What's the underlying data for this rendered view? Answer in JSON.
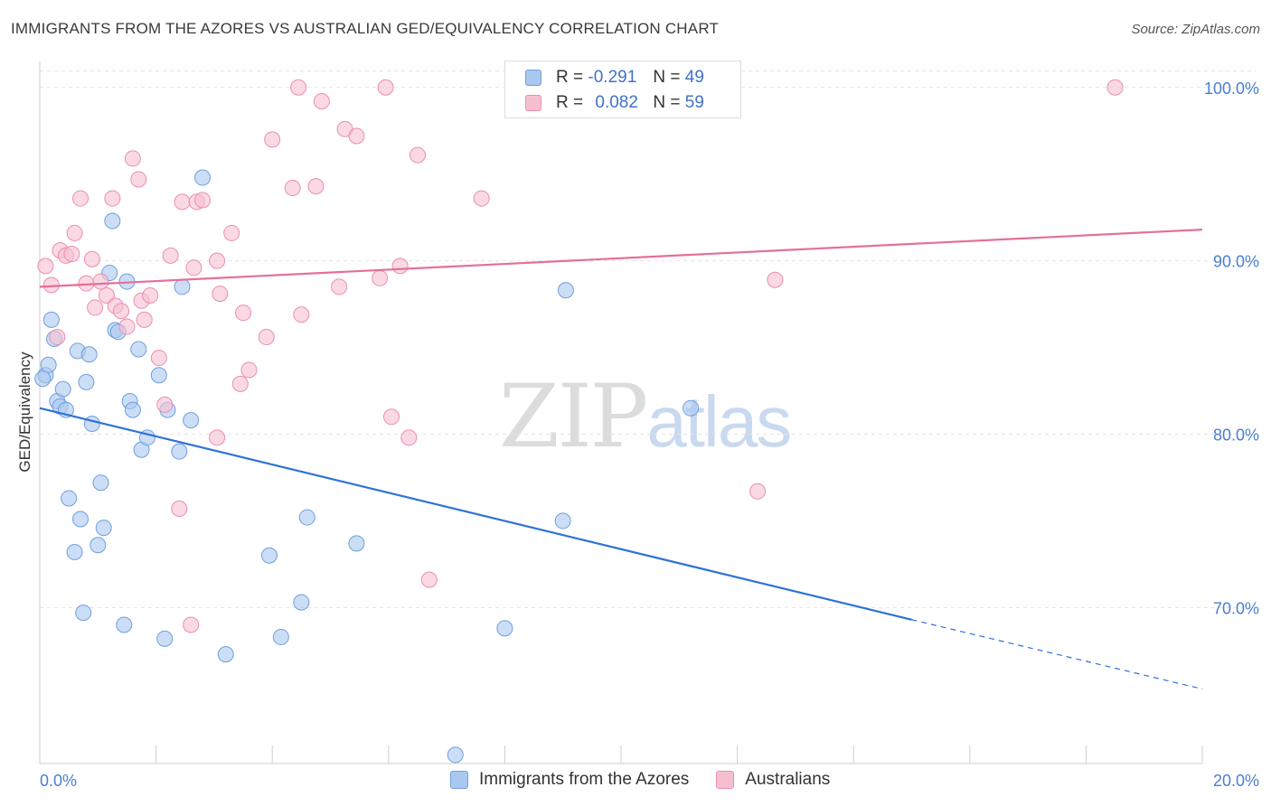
{
  "title": "IMMIGRANTS FROM THE AZORES VS AUSTRALIAN GED/EQUIVALENCY CORRELATION CHART",
  "source": "Source: ZipAtlas.com",
  "watermark": {
    "zip": "ZIP",
    "atlas": "atlas"
  },
  "legend": {
    "rows": [
      {
        "r_label": "R =",
        "r_value": "-0.291",
        "n_label": "N =",
        "n_value": "49"
      },
      {
        "r_label": "R =",
        "r_value": "0.082",
        "n_label": "N =",
        "n_value": "59"
      }
    ]
  },
  "colors": {
    "blue_fill": "#aac8ef",
    "blue_stroke": "#6f9fe0",
    "blue_line": "#2f72d6",
    "pink_fill": "#f6bfd0",
    "pink_stroke": "#ea8faf",
    "pink_line": "#e56f97",
    "grid": "#e3e3e3",
    "axis_text": "#4a7fd1"
  },
  "chart_data": {
    "type": "scatter",
    "title": "IMMIGRANTS FROM THE AZORES VS AUSTRALIAN GED/EQUIVALENCY CORRELATION CHART",
    "xlabel": "",
    "ylabel": "GED/Equivalency",
    "xlim": [
      0,
      20
    ],
    "ylim": [
      61.0,
      101.5
    ],
    "x_tick_labels": [
      "0.0%",
      "20.0%"
    ],
    "y_ticks": [
      70,
      80,
      90,
      100
    ],
    "y_tick_labels": [
      "70.0%",
      "80.0%",
      "90.0%",
      "100.0%"
    ],
    "grid": true,
    "legend_position": "top-center",
    "series": [
      {
        "name": "Immigrants from the Azores",
        "color": "#aac8ef",
        "points": [
          [
            0.1,
            83.4
          ],
          [
            0.15,
            84.0
          ],
          [
            0.2,
            86.6
          ],
          [
            0.25,
            85.5
          ],
          [
            0.3,
            81.9
          ],
          [
            0.35,
            81.6
          ],
          [
            0.4,
            82.6
          ],
          [
            0.45,
            81.4
          ],
          [
            0.5,
            76.3
          ],
          [
            0.6,
            73.2
          ],
          [
            0.65,
            84.8
          ],
          [
            0.7,
            75.1
          ],
          [
            0.75,
            69.7
          ],
          [
            0.8,
            83.0
          ],
          [
            0.85,
            84.6
          ],
          [
            0.9,
            80.6
          ],
          [
            1.0,
            73.6
          ],
          [
            1.05,
            77.2
          ],
          [
            1.1,
            74.6
          ],
          [
            1.2,
            89.3
          ],
          [
            1.25,
            92.3
          ],
          [
            1.3,
            86.0
          ],
          [
            1.35,
            85.9
          ],
          [
            1.45,
            69.0
          ],
          [
            1.5,
            88.8
          ],
          [
            1.55,
            81.9
          ],
          [
            1.6,
            81.4
          ],
          [
            1.7,
            84.9
          ],
          [
            1.75,
            79.1
          ],
          [
            1.85,
            79.8
          ],
          [
            2.05,
            83.4
          ],
          [
            2.15,
            68.2
          ],
          [
            2.2,
            81.4
          ],
          [
            2.4,
            79.0
          ],
          [
            2.45,
            88.5
          ],
          [
            2.6,
            80.8
          ],
          [
            2.8,
            94.8
          ],
          [
            3.2,
            67.3
          ],
          [
            3.95,
            73.0
          ],
          [
            4.15,
            68.3
          ],
          [
            4.5,
            70.3
          ],
          [
            4.6,
            75.2
          ],
          [
            5.45,
            73.7
          ],
          [
            7.15,
            61.5
          ],
          [
            8.0,
            68.8
          ],
          [
            9.0,
            75.0
          ],
          [
            9.05,
            88.3
          ],
          [
            11.2,
            81.5
          ],
          [
            0.05,
            83.2
          ]
        ],
        "trend": {
          "x0": 0.0,
          "y0": 81.5,
          "x1": 15.0,
          "y1": 69.3,
          "dash_to_x": 20.0,
          "dash_to_y": 65.3
        }
      },
      {
        "name": "Australians",
        "color": "#f6bfd0",
        "points": [
          [
            0.1,
            89.7
          ],
          [
            0.2,
            88.6
          ],
          [
            0.3,
            85.6
          ],
          [
            0.35,
            90.6
          ],
          [
            0.45,
            90.3
          ],
          [
            0.55,
            90.4
          ],
          [
            0.6,
            91.6
          ],
          [
            0.7,
            93.6
          ],
          [
            0.8,
            88.7
          ],
          [
            0.9,
            90.1
          ],
          [
            0.95,
            87.3
          ],
          [
            1.05,
            88.8
          ],
          [
            1.15,
            88.0
          ],
          [
            1.25,
            93.6
          ],
          [
            1.3,
            87.4
          ],
          [
            1.4,
            87.1
          ],
          [
            1.5,
            86.2
          ],
          [
            1.6,
            95.9
          ],
          [
            1.7,
            94.7
          ],
          [
            1.75,
            87.7
          ],
          [
            1.8,
            86.6
          ],
          [
            1.9,
            88.0
          ],
          [
            2.05,
            84.4
          ],
          [
            2.15,
            81.7
          ],
          [
            2.25,
            90.3
          ],
          [
            2.4,
            75.7
          ],
          [
            2.45,
            93.4
          ],
          [
            2.6,
            69.0
          ],
          [
            2.65,
            89.6
          ],
          [
            2.7,
            93.4
          ],
          [
            2.8,
            93.5
          ],
          [
            3.05,
            90.0
          ],
          [
            3.05,
            79.8
          ],
          [
            3.1,
            88.1
          ],
          [
            3.3,
            91.6
          ],
          [
            3.45,
            82.9
          ],
          [
            3.5,
            87.0
          ],
          [
            3.6,
            83.7
          ],
          [
            3.9,
            85.6
          ],
          [
            4.0,
            97.0
          ],
          [
            4.35,
            94.2
          ],
          [
            4.45,
            100.0
          ],
          [
            4.5,
            86.9
          ],
          [
            4.75,
            94.3
          ],
          [
            4.85,
            99.2
          ],
          [
            5.15,
            88.5
          ],
          [
            5.25,
            97.6
          ],
          [
            5.45,
            97.2
          ],
          [
            5.85,
            89.0
          ],
          [
            5.95,
            100.0
          ],
          [
            6.05,
            81.0
          ],
          [
            6.2,
            89.7
          ],
          [
            6.35,
            79.8
          ],
          [
            6.5,
            96.1
          ],
          [
            6.7,
            71.6
          ],
          [
            7.6,
            93.6
          ],
          [
            12.35,
            76.7
          ],
          [
            12.65,
            88.9
          ],
          [
            18.5,
            100.0
          ]
        ],
        "trend": {
          "x0": 0.0,
          "y0": 88.5,
          "x1": 20.0,
          "y1": 91.8
        }
      }
    ]
  }
}
